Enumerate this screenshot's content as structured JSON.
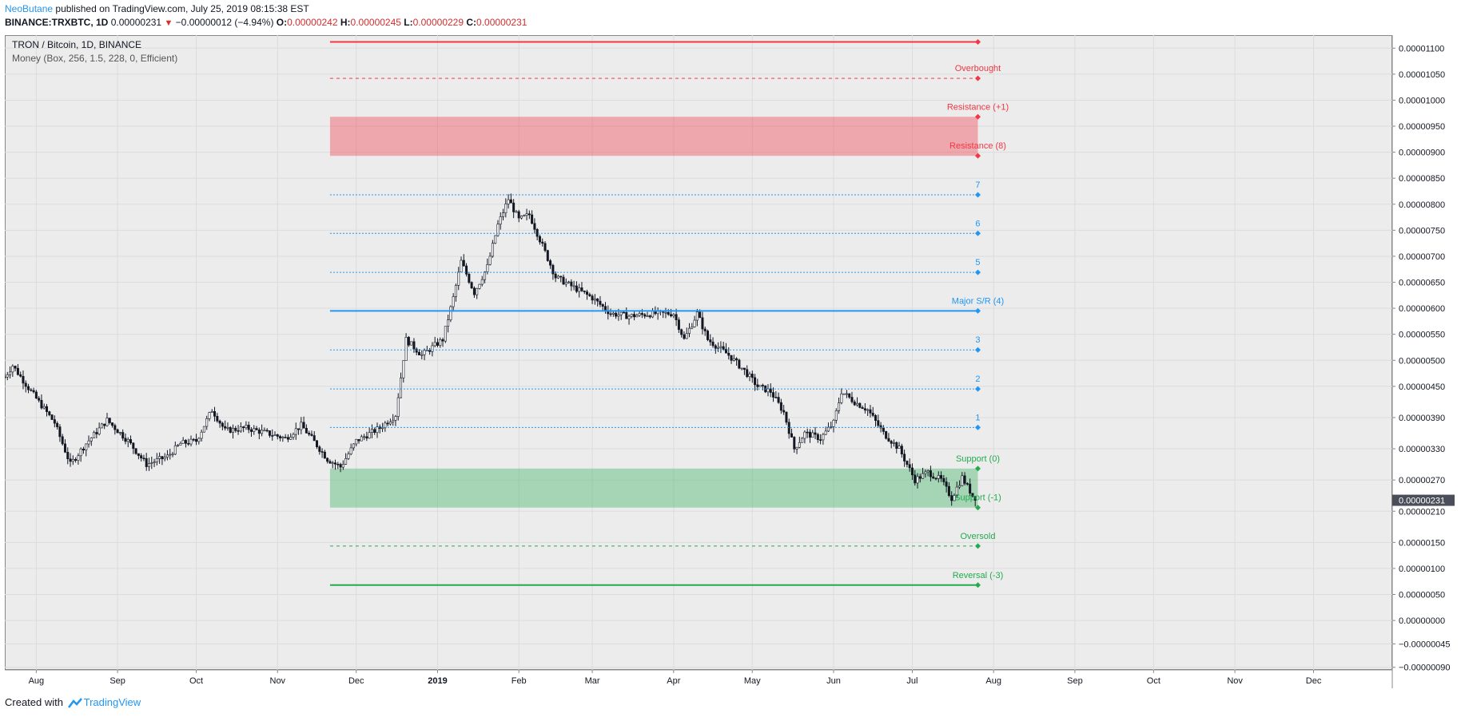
{
  "header": {
    "author": "NeoButane",
    "published": "published on TradingView.com, July 25, 2019 08:15:38 EST",
    "symbol": "BINANCE:TRXBTC, 1D",
    "last": "0.00000231",
    "change": "−0.00000012 (−4.94%)",
    "o_label": "O:",
    "o": "0.00000242",
    "h_label": "H:",
    "h": "0.00000245",
    "l_label": "L:",
    "l": "0.00000229",
    "c_label": "C:",
    "c": "0.00000231"
  },
  "legend": {
    "title": "TRON / Bitcoin, 1D, BINANCE",
    "indicator": "Money (Box, 256, 1.5, 228, 0, Efficient)"
  },
  "footer": {
    "created": "Created with",
    "brand": "TradingView"
  },
  "chart_data": {
    "type": "candlestick",
    "title": "TRON / Bitcoin, 1D, BINANCE",
    "ylim": [
      -9.5e-07,
      1.125e-05
    ],
    "y_ticks": [
      {
        "label": "0.00001100",
        "value": 1.1e-05
      },
      {
        "label": "0.00001050",
        "value": 1.05e-05
      },
      {
        "label": "0.00001000",
        "value": 1e-05
      },
      {
        "label": "0.00000950",
        "value": 9.5e-06
      },
      {
        "label": "0.00000900",
        "value": 9e-06
      },
      {
        "label": "0.00000850",
        "value": 8.5e-06
      },
      {
        "label": "0.00000800",
        "value": 8e-06
      },
      {
        "label": "0.00000750",
        "value": 7.5e-06
      },
      {
        "label": "0.00000700",
        "value": 7e-06
      },
      {
        "label": "0.00000650",
        "value": 6.5e-06
      },
      {
        "label": "0.00000600",
        "value": 6e-06
      },
      {
        "label": "0.00000550",
        "value": 5.5e-06
      },
      {
        "label": "0.00000500",
        "value": 5e-06
      },
      {
        "label": "0.00000450",
        "value": 4.5e-06
      },
      {
        "label": "0.00000390",
        "value": 3.9e-06
      },
      {
        "label": "0.00000330",
        "value": 3.3e-06
      },
      {
        "label": "0.00000270",
        "value": 2.7e-06
      },
      {
        "label": "0.00000210",
        "value": 2.1e-06
      },
      {
        "label": "0.00000150",
        "value": 1.5e-06
      },
      {
        "label": "0.00000100",
        "value": 1e-06
      },
      {
        "label": "0.00000050",
        "value": 5e-07
      },
      {
        "label": "0.00000000",
        "value": 0
      },
      {
        "label": "−0.00000045",
        "value": -4.5e-07
      },
      {
        "label": "−0.00000090",
        "value": -9e-07
      }
    ],
    "x_ticks": [
      {
        "label": "Aug",
        "date": "2018-08-01"
      },
      {
        "label": "Sep",
        "date": "2018-09-01"
      },
      {
        "label": "Oct",
        "date": "2018-10-01"
      },
      {
        "label": "Nov",
        "date": "2018-11-01"
      },
      {
        "label": "Dec",
        "date": "2018-12-01"
      },
      {
        "label": "2019",
        "date": "2019-01-01",
        "bold": true
      },
      {
        "label": "Feb",
        "date": "2019-02-01"
      },
      {
        "label": "Mar",
        "date": "2019-03-01"
      },
      {
        "label": "Apr",
        "date": "2019-04-01"
      },
      {
        "label": "May",
        "date": "2019-05-01"
      },
      {
        "label": "Jun",
        "date": "2019-06-01"
      },
      {
        "label": "Jul",
        "date": "2019-07-01"
      },
      {
        "label": "Aug",
        "date": "2019-08-01"
      },
      {
        "label": "Sep",
        "date": "2019-09-01"
      },
      {
        "label": "Oct",
        "date": "2019-10-01"
      },
      {
        "label": "Nov",
        "date": "2019-11-01"
      },
      {
        "label": "Dec",
        "date": "2019-12-01"
      }
    ],
    "x_range": [
      "2018-07-20",
      "2019-12-31"
    ],
    "price_path": [
      {
        "date": "2018-07-20",
        "close": 4.68e-06
      },
      {
        "date": "2018-07-23",
        "close": 4.9e-06
      },
      {
        "date": "2018-07-30",
        "close": 4.4e-06
      },
      {
        "date": "2018-08-08",
        "close": 3.8e-06
      },
      {
        "date": "2018-08-14",
        "close": 3e-06
      },
      {
        "date": "2018-08-20",
        "close": 3.4e-06
      },
      {
        "date": "2018-08-28",
        "close": 3.85e-06
      },
      {
        "date": "2018-09-05",
        "close": 3.45e-06
      },
      {
        "date": "2018-09-12",
        "close": 3e-06
      },
      {
        "date": "2018-09-20",
        "close": 3.15e-06
      },
      {
        "date": "2018-09-25",
        "close": 3.4e-06
      },
      {
        "date": "2018-10-01",
        "close": 3.45e-06
      },
      {
        "date": "2018-10-07",
        "close": 4.05e-06
      },
      {
        "date": "2018-10-12",
        "close": 3.65e-06
      },
      {
        "date": "2018-10-20",
        "close": 3.7e-06
      },
      {
        "date": "2018-10-28",
        "close": 3.6e-06
      },
      {
        "date": "2018-11-04",
        "close": 3.5e-06
      },
      {
        "date": "2018-11-10",
        "close": 3.75e-06
      },
      {
        "date": "2018-11-14",
        "close": 3.5e-06
      },
      {
        "date": "2018-11-20",
        "close": 3.1e-06
      },
      {
        "date": "2018-11-25",
        "close": 2.95e-06
      },
      {
        "date": "2018-12-01",
        "close": 3.45e-06
      },
      {
        "date": "2018-12-10",
        "close": 3.7e-06
      },
      {
        "date": "2018-12-16",
        "close": 3.95e-06
      },
      {
        "date": "2018-12-20",
        "close": 5.4e-06
      },
      {
        "date": "2018-12-26",
        "close": 5.1e-06
      },
      {
        "date": "2019-01-03",
        "close": 5.4e-06
      },
      {
        "date": "2019-01-07",
        "close": 6.2e-06
      },
      {
        "date": "2019-01-10",
        "close": 6.9e-06
      },
      {
        "date": "2019-01-15",
        "close": 6.3e-06
      },
      {
        "date": "2019-01-20",
        "close": 6.8e-06
      },
      {
        "date": "2019-01-24",
        "close": 7.6e-06
      },
      {
        "date": "2019-01-28",
        "close": 8.1e-06
      },
      {
        "date": "2019-02-01",
        "close": 7.7e-06
      },
      {
        "date": "2019-02-05",
        "close": 7.8e-06
      },
      {
        "date": "2019-02-10",
        "close": 7.2e-06
      },
      {
        "date": "2019-02-15",
        "close": 6.6e-06
      },
      {
        "date": "2019-02-22",
        "close": 6.4e-06
      },
      {
        "date": "2019-03-01",
        "close": 6.2e-06
      },
      {
        "date": "2019-03-08",
        "close": 5.9e-06
      },
      {
        "date": "2019-03-15",
        "close": 5.85e-06
      },
      {
        "date": "2019-03-25",
        "close": 5.9e-06
      },
      {
        "date": "2019-04-01",
        "close": 5.9e-06
      },
      {
        "date": "2019-04-05",
        "close": 5.4e-06
      },
      {
        "date": "2019-04-10",
        "close": 5.9e-06
      },
      {
        "date": "2019-04-14",
        "close": 5.4e-06
      },
      {
        "date": "2019-04-22",
        "close": 5.1e-06
      },
      {
        "date": "2019-04-28",
        "close": 4.8e-06
      },
      {
        "date": "2019-05-03",
        "close": 4.5e-06
      },
      {
        "date": "2019-05-08",
        "close": 4.4e-06
      },
      {
        "date": "2019-05-13",
        "close": 4e-06
      },
      {
        "date": "2019-05-17",
        "close": 3.3e-06
      },
      {
        "date": "2019-05-21",
        "close": 3.6e-06
      },
      {
        "date": "2019-05-27",
        "close": 3.5e-06
      },
      {
        "date": "2019-06-01",
        "close": 3.8e-06
      },
      {
        "date": "2019-06-04",
        "close": 4.4e-06
      },
      {
        "date": "2019-06-09",
        "close": 4.2e-06
      },
      {
        "date": "2019-06-14",
        "close": 4.05e-06
      },
      {
        "date": "2019-06-20",
        "close": 3.6e-06
      },
      {
        "date": "2019-06-26",
        "close": 3.3e-06
      },
      {
        "date": "2019-07-02",
        "close": 2.7e-06
      },
      {
        "date": "2019-07-07",
        "close": 2.85e-06
      },
      {
        "date": "2019-07-12",
        "close": 2.7e-06
      },
      {
        "date": "2019-07-16",
        "close": 2.35e-06
      },
      {
        "date": "2019-07-20",
        "close": 2.75e-06
      },
      {
        "date": "2019-07-25",
        "close": 2.31e-06
      }
    ],
    "last_price": {
      "value": 2.31e-06,
      "label": "0.00000231"
    },
    "levels": [
      {
        "label": "",
        "value": 1.112e-05,
        "color": "#f23645",
        "style": "solid"
      },
      {
        "label": "Overbought",
        "value": 1.042e-05,
        "color": "#f23645",
        "style": "dashed"
      },
      {
        "label": "Resistance (+1)",
        "value": 9.68e-06,
        "color": "#f23645",
        "style": "none"
      },
      {
        "label": "Resistance (8)",
        "value": 8.93e-06,
        "color": "#f23645",
        "style": "none"
      },
      {
        "label": "7",
        "value": 8.18e-06,
        "color": "#2196f3",
        "style": "dotted"
      },
      {
        "label": "6",
        "value": 7.44e-06,
        "color": "#2196f3",
        "style": "dotted"
      },
      {
        "label": "5",
        "value": 6.69e-06,
        "color": "#2196f3",
        "style": "dotted"
      },
      {
        "label": "Major S/R (4)",
        "value": 5.95e-06,
        "color": "#2196f3",
        "style": "solid"
      },
      {
        "label": "3",
        "value": 5.2e-06,
        "color": "#2196f3",
        "style": "dotted"
      },
      {
        "label": "2",
        "value": 4.45e-06,
        "color": "#2196f3",
        "style": "dotted"
      },
      {
        "label": "1",
        "value": 3.71e-06,
        "color": "#2196f3",
        "style": "dotted"
      },
      {
        "label": "Support (0)",
        "value": 2.92e-06,
        "color": "#22ab4f",
        "style": "none"
      },
      {
        "label": "Support (-1)",
        "value": 2.17e-06,
        "color": "#22ab4f",
        "style": "none"
      },
      {
        "label": "Oversold",
        "value": 1.43e-06,
        "color": "#22ab4f",
        "style": "dashed"
      },
      {
        "label": "Reversal (-3)",
        "value": 6.8e-07,
        "color": "#22ab4f",
        "style": "solid"
      }
    ],
    "boxes": [
      {
        "name": "resistance-zone",
        "from": 8.93e-06,
        "to": 9.68e-06,
        "color": "#f23645",
        "opacity": 0.38
      },
      {
        "name": "support-zone",
        "from": 2.17e-06,
        "to": 2.92e-06,
        "color": "#22ab4f",
        "opacity": 0.35
      }
    ],
    "level_range": [
      "2018-11-21",
      "2019-07-26"
    ],
    "grid": true,
    "colors": {
      "background": "#ececec",
      "candle": "#131722",
      "text": "#131722"
    }
  }
}
